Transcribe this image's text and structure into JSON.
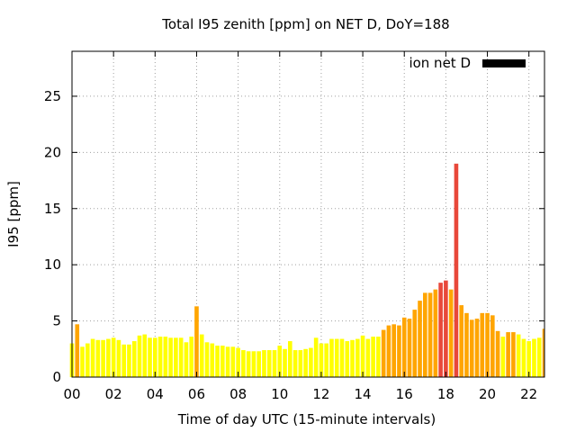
{
  "chart_data": {
    "type": "bar",
    "title": "Total I95 zenith [ppm] on NET D, DoY=188",
    "xlabel": "Time of day UTC (15-minute intervals)",
    "ylabel": "I95 [ppm]",
    "legend": {
      "label": "ion net D",
      "color": "#000000",
      "placement": "top-right"
    },
    "grid": true,
    "xlim": [
      0,
      22.75
    ],
    "ylim": [
      0,
      29
    ],
    "x_ticks": [
      "00",
      "02",
      "04",
      "06",
      "08",
      "10",
      "12",
      "14",
      "16",
      "18",
      "20",
      "22"
    ],
    "x_tick_values": [
      0,
      2,
      4,
      6,
      8,
      10,
      12,
      14,
      16,
      18,
      20,
      22
    ],
    "y_ticks": [
      "0",
      "5",
      "10",
      "15",
      "20",
      "25"
    ],
    "y_tick_values": [
      0,
      5,
      10,
      15,
      20,
      25
    ],
    "bar_width_hours": 0.2,
    "bars": [
      {
        "x": 0.0,
        "y": 3.0,
        "color": "#ffff00"
      },
      {
        "x": 0.25,
        "y": 4.7,
        "color": "#ffa500"
      },
      {
        "x": 0.5,
        "y": 2.7,
        "color": "#ffff00"
      },
      {
        "x": 0.75,
        "y": 3.0,
        "color": "#ffff00"
      },
      {
        "x": 1.0,
        "y": 3.4,
        "color": "#ffff00"
      },
      {
        "x": 1.25,
        "y": 3.3,
        "color": "#ffff00"
      },
      {
        "x": 1.5,
        "y": 3.3,
        "color": "#ffff00"
      },
      {
        "x": 1.75,
        "y": 3.4,
        "color": "#ffff00"
      },
      {
        "x": 2.0,
        "y": 3.5,
        "color": "#ffff00"
      },
      {
        "x": 2.25,
        "y": 3.3,
        "color": "#ffff00"
      },
      {
        "x": 2.5,
        "y": 2.9,
        "color": "#ffff00"
      },
      {
        "x": 2.75,
        "y": 2.9,
        "color": "#ffff00"
      },
      {
        "x": 3.0,
        "y": 3.2,
        "color": "#ffff00"
      },
      {
        "x": 3.25,
        "y": 3.7,
        "color": "#ffff00"
      },
      {
        "x": 3.5,
        "y": 3.8,
        "color": "#ffff00"
      },
      {
        "x": 3.75,
        "y": 3.5,
        "color": "#ffff00"
      },
      {
        "x": 4.0,
        "y": 3.5,
        "color": "#ffff00"
      },
      {
        "x": 4.25,
        "y": 3.6,
        "color": "#ffff00"
      },
      {
        "x": 4.5,
        "y": 3.6,
        "color": "#ffff00"
      },
      {
        "x": 4.75,
        "y": 3.5,
        "color": "#ffff00"
      },
      {
        "x": 5.0,
        "y": 3.5,
        "color": "#ffff00"
      },
      {
        "x": 5.25,
        "y": 3.5,
        "color": "#ffff00"
      },
      {
        "x": 5.5,
        "y": 3.1,
        "color": "#ffff00"
      },
      {
        "x": 5.75,
        "y": 3.6,
        "color": "#ffff00"
      },
      {
        "x": 6.0,
        "y": 6.3,
        "color": "#ffa500"
      },
      {
        "x": 6.25,
        "y": 3.8,
        "color": "#ffff00"
      },
      {
        "x": 6.5,
        "y": 3.1,
        "color": "#ffff00"
      },
      {
        "x": 6.75,
        "y": 3.0,
        "color": "#ffff00"
      },
      {
        "x": 7.0,
        "y": 2.8,
        "color": "#ffff00"
      },
      {
        "x": 7.25,
        "y": 2.8,
        "color": "#ffff00"
      },
      {
        "x": 7.5,
        "y": 2.7,
        "color": "#ffff00"
      },
      {
        "x": 7.75,
        "y": 2.7,
        "color": "#ffff00"
      },
      {
        "x": 8.0,
        "y": 2.6,
        "color": "#ffff00"
      },
      {
        "x": 8.25,
        "y": 2.4,
        "color": "#ffff00"
      },
      {
        "x": 8.5,
        "y": 2.3,
        "color": "#ffff00"
      },
      {
        "x": 8.75,
        "y": 2.3,
        "color": "#ffff00"
      },
      {
        "x": 9.0,
        "y": 2.3,
        "color": "#ffff00"
      },
      {
        "x": 9.25,
        "y": 2.4,
        "color": "#ffff00"
      },
      {
        "x": 9.5,
        "y": 2.4,
        "color": "#ffff00"
      },
      {
        "x": 9.75,
        "y": 2.4,
        "color": "#ffff00"
      },
      {
        "x": 10.0,
        "y": 2.8,
        "color": "#ffff00"
      },
      {
        "x": 10.25,
        "y": 2.5,
        "color": "#ffff00"
      },
      {
        "x": 10.5,
        "y": 3.2,
        "color": "#ffff00"
      },
      {
        "x": 10.75,
        "y": 2.4,
        "color": "#ffff00"
      },
      {
        "x": 11.0,
        "y": 2.4,
        "color": "#ffff00"
      },
      {
        "x": 11.25,
        "y": 2.5,
        "color": "#ffff00"
      },
      {
        "x": 11.5,
        "y": 2.6,
        "color": "#ffff00"
      },
      {
        "x": 11.75,
        "y": 3.5,
        "color": "#ffff00"
      },
      {
        "x": 12.0,
        "y": 3.0,
        "color": "#ffff00"
      },
      {
        "x": 12.25,
        "y": 3.0,
        "color": "#ffff00"
      },
      {
        "x": 12.5,
        "y": 3.4,
        "color": "#ffff00"
      },
      {
        "x": 12.75,
        "y": 3.4,
        "color": "#ffff00"
      },
      {
        "x": 13.0,
        "y": 3.4,
        "color": "#ffff00"
      },
      {
        "x": 13.25,
        "y": 3.2,
        "color": "#ffff00"
      },
      {
        "x": 13.5,
        "y": 3.3,
        "color": "#ffff00"
      },
      {
        "x": 13.75,
        "y": 3.4,
        "color": "#ffff00"
      },
      {
        "x": 14.0,
        "y": 3.7,
        "color": "#ffff00"
      },
      {
        "x": 14.25,
        "y": 3.4,
        "color": "#ffff00"
      },
      {
        "x": 14.5,
        "y": 3.6,
        "color": "#ffff00"
      },
      {
        "x": 14.75,
        "y": 3.6,
        "color": "#ffff00"
      },
      {
        "x": 15.0,
        "y": 4.2,
        "color": "#ffa500"
      },
      {
        "x": 15.25,
        "y": 4.6,
        "color": "#ffa500"
      },
      {
        "x": 15.5,
        "y": 4.7,
        "color": "#ffa500"
      },
      {
        "x": 15.75,
        "y": 4.6,
        "color": "#ffa500"
      },
      {
        "x": 16.0,
        "y": 5.3,
        "color": "#ffa500"
      },
      {
        "x": 16.25,
        "y": 5.2,
        "color": "#ffa500"
      },
      {
        "x": 16.5,
        "y": 6.0,
        "color": "#ffa500"
      },
      {
        "x": 16.75,
        "y": 6.8,
        "color": "#ffa500"
      },
      {
        "x": 17.0,
        "y": 7.5,
        "color": "#ffa500"
      },
      {
        "x": 17.25,
        "y": 7.5,
        "color": "#ffa500"
      },
      {
        "x": 17.5,
        "y": 7.8,
        "color": "#ffa500"
      },
      {
        "x": 17.75,
        "y": 8.4,
        "color": "#e8483a"
      },
      {
        "x": 18.0,
        "y": 8.6,
        "color": "#e8483a"
      },
      {
        "x": 18.25,
        "y": 7.8,
        "color": "#ffa500"
      },
      {
        "x": 18.5,
        "y": 19.0,
        "color": "#e8483a"
      },
      {
        "x": 18.75,
        "y": 6.4,
        "color": "#ffa500"
      },
      {
        "x": 19.0,
        "y": 5.7,
        "color": "#ffa500"
      },
      {
        "x": 19.25,
        "y": 5.1,
        "color": "#ffa500"
      },
      {
        "x": 19.5,
        "y": 5.2,
        "color": "#ffa500"
      },
      {
        "x": 19.75,
        "y": 5.7,
        "color": "#ffa500"
      },
      {
        "x": 20.0,
        "y": 5.7,
        "color": "#ffa500"
      },
      {
        "x": 20.25,
        "y": 5.5,
        "color": "#ffa500"
      },
      {
        "x": 20.5,
        "y": 4.1,
        "color": "#ffa500"
      },
      {
        "x": 20.75,
        "y": 3.6,
        "color": "#ffff00"
      },
      {
        "x": 21.0,
        "y": 4.0,
        "color": "#ffa500"
      },
      {
        "x": 21.25,
        "y": 4.0,
        "color": "#ffa500"
      },
      {
        "x": 21.5,
        "y": 3.8,
        "color": "#ffff00"
      },
      {
        "x": 21.75,
        "y": 3.4,
        "color": "#ffff00"
      },
      {
        "x": 22.0,
        "y": 3.2,
        "color": "#ffff00"
      },
      {
        "x": 22.25,
        "y": 3.4,
        "color": "#ffff00"
      },
      {
        "x": 22.5,
        "y": 3.5,
        "color": "#ffff00"
      },
      {
        "x": 22.75,
        "y": 4.3,
        "color": "#ffa500"
      }
    ]
  }
}
